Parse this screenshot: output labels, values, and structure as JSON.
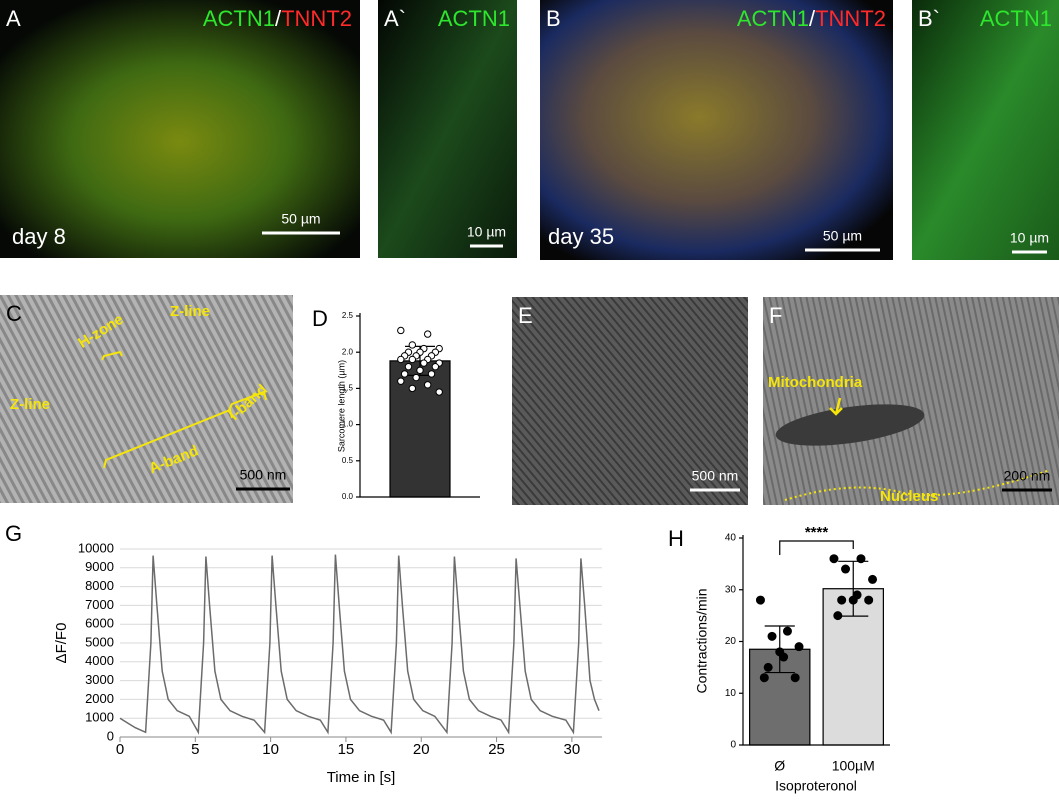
{
  "images": [
    {
      "panel": "A",
      "stain": [
        {
          "text": "ACTN1",
          "color": "#2ee62e"
        },
        {
          "text": "/",
          "color": "#ffffff"
        },
        {
          "text": "TNNT2",
          "color": "#ff2a2a"
        }
      ],
      "caption": "day 8",
      "scale": "50 µm"
    },
    {
      "panel": "A`",
      "stain": [
        {
          "text": "ACTN1",
          "color": "#2ee62e"
        }
      ],
      "scale": "10 µm"
    },
    {
      "panel": "B",
      "stain": [
        {
          "text": "ACTN1",
          "color": "#2ee62e"
        },
        {
          "text": "/",
          "color": "#ffffff"
        },
        {
          "text": "TNNT2",
          "color": "#ff2a2a"
        }
      ],
      "caption": "day 35",
      "scale": "50 µm"
    },
    {
      "panel": "B`",
      "stain": [
        {
          "text": "ACTN1",
          "color": "#2ee62e"
        }
      ],
      "scale": "10 µm"
    },
    {
      "panel": "C",
      "annotations": [
        "Z-line",
        "H-zone",
        "Z-line",
        "A-band",
        "I-band"
      ],
      "scale": "500 nm"
    },
    {
      "panel": "E",
      "scale": "500 nm"
    },
    {
      "panel": "F",
      "annotations": [
        "Mitochondria",
        "Nucleus"
      ],
      "scale": "200 nm"
    }
  ],
  "chart_data": [
    {
      "type": "bar",
      "panel": "D",
      "ylabel": "Sarcomere length (µm)",
      "categories": [
        null
      ],
      "values": [
        1.88
      ],
      "errors": [
        0.2
      ],
      "color": "#333333",
      "point_color": "#ffffff",
      "points": [
        [
          2.3,
          2.25,
          2.1,
          2.05,
          2.05,
          2.0,
          2.0,
          2.0,
          1.95,
          1.95,
          1.95,
          1.9,
          1.9,
          1.9,
          1.85,
          1.85,
          1.8,
          1.8,
          1.75,
          1.7,
          1.7,
          1.65,
          1.6,
          1.55,
          1.5,
          1.45
        ]
      ],
      "ylim": [
        0,
        2.5
      ],
      "yticks": [
        {
          "value": 0,
          "label": "0.0"
        },
        0.5,
        {
          "value": 1,
          "label": "1.0"
        },
        1.5,
        {
          "value": 2,
          "label": "2.0"
        },
        2.5
      ]
    },
    {
      "type": "line",
      "panel": "G",
      "ylabel": "ΔF/F0",
      "xlabel": "Time in [s]",
      "color": "#6b6b6b",
      "grid": true,
      "x": [
        0,
        0.4,
        1.0,
        1.7,
        2.05,
        2.2,
        2.45,
        2.8,
        3.2,
        3.8,
        4.6,
        5.2,
        5.55,
        5.7,
        5.95,
        6.3,
        6.7,
        7.3,
        8.1,
        8.9,
        9.6,
        9.95,
        10.1,
        10.35,
        10.7,
        11.1,
        11.7,
        12.5,
        13.3,
        13.8,
        14.15,
        14.3,
        14.55,
        14.9,
        15.3,
        15.9,
        16.7,
        17.5,
        18.0,
        18.35,
        18.5,
        18.75,
        19.1,
        19.5,
        20.1,
        20.9,
        21.7,
        22.05,
        22.2,
        22.45,
        22.8,
        23.2,
        23.8,
        24.6,
        25.3,
        25.8,
        26.15,
        26.3,
        26.55,
        26.9,
        27.3,
        27.9,
        28.7,
        29.6,
        30.1,
        30.45,
        30.6,
        30.85,
        31.2,
        31.5,
        31.8
      ],
      "values": [
        1000,
        800,
        500,
        250,
        5000,
        9650,
        7000,
        3500,
        2000,
        1400,
        1100,
        250,
        5000,
        9600,
        7000,
        3500,
        2000,
        1400,
        1100,
        900,
        250,
        5000,
        9650,
        7000,
        3500,
        2000,
        1400,
        1100,
        900,
        250,
        5000,
        9700,
        7000,
        3500,
        2000,
        1400,
        1100,
        900,
        250,
        5000,
        9650,
        7000,
        3500,
        2000,
        1400,
        1100,
        250,
        5000,
        9600,
        7000,
        3500,
        2000,
        1400,
        1100,
        900,
        250,
        5000,
        9500,
        7000,
        3500,
        2000,
        1400,
        1100,
        900,
        250,
        5000,
        9500,
        7000,
        3000,
        2000,
        1400
      ],
      "xlim": [
        0,
        32
      ],
      "xticks": [
        0,
        5,
        10,
        15,
        20,
        25,
        30
      ],
      "ylim": [
        0,
        10000
      ],
      "yticks": [
        0,
        1000,
        2000,
        3000,
        4000,
        5000,
        6000,
        7000,
        8000,
        9000,
        10000
      ]
    },
    {
      "type": "bar",
      "panel": "H",
      "ylabel": "Contractions/min",
      "xlabel": "Isoproteronol",
      "categories": [
        "Ø",
        "100µM"
      ],
      "values": [
        18.5,
        30.2
      ],
      "errors": [
        4.5,
        5.3
      ],
      "colors": [
        "#6e6e6e",
        "#dcdcdc"
      ],
      "point_color": "#000000",
      "points": [
        [
          28,
          22,
          21,
          19,
          17,
          15,
          13,
          18,
          13
        ],
        [
          36,
          36,
          34,
          32,
          29,
          28,
          28,
          28,
          25
        ]
      ],
      "significance": "****",
      "ylim": [
        0,
        40
      ],
      "yticks": [
        0,
        10,
        20,
        30,
        40
      ]
    }
  ]
}
